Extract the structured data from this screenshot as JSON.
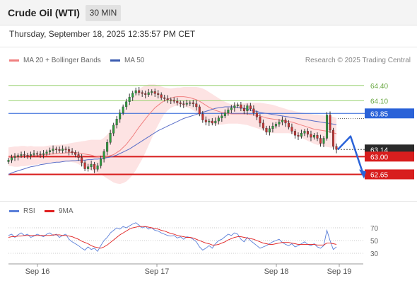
{
  "header": {
    "title": "Crude Oil (WTI)",
    "timeframe": "30 MIN"
  },
  "datetime": "Thursday, September 18, 2025 12:35:57 PM CET",
  "legend_main": {
    "ma20": "MA 20 + Bollinger Bands",
    "ma50": "MA 50"
  },
  "copyright": "Research © 2025 Trading Central",
  "legend_rsi": {
    "rsi": "RSI",
    "ma9": "9MA"
  },
  "colors": {
    "up": "#2e9e3e",
    "down": "#c83232",
    "ma20": "#f08080",
    "ma50": "#5a6ec8",
    "band": "#fde3e3",
    "pivot": "#2a62d8",
    "support": "#d81e1e",
    "resistance": "#9ad272",
    "current": "#2a2a2a",
    "arrow": "#2a62d8"
  },
  "chart_data": [
    {
      "type": "candlestick",
      "ylim": [
        62.35,
        64.62
      ],
      "x_ticks": [
        "Sep 16",
        "Sep 17",
        "Sep 18",
        "Sep 19"
      ],
      "levels": [
        {
          "name": "resistance-2",
          "value": 64.4,
          "label": "64.40",
          "kind": "resistance"
        },
        {
          "name": "resistance-1",
          "value": 64.1,
          "label": "64.10",
          "kind": "resistance"
        },
        {
          "name": "pivot",
          "value": 63.85,
          "label": "63.85",
          "kind": "pivot"
        },
        {
          "name": "current-price",
          "value": 63.14,
          "label": "63.14",
          "kind": "current"
        },
        {
          "name": "support-1",
          "value": 63.0,
          "label": "63.00",
          "kind": "support"
        },
        {
          "name": "support-2",
          "value": 62.65,
          "label": "62.65",
          "kind": "support"
        }
      ],
      "close": [
        62.93,
        62.98,
        63.0,
        63.02,
        63.04,
        63.03,
        63.02,
        63.04,
        63.06,
        63.05,
        63.04,
        63.06,
        63.09,
        63.12,
        63.15,
        63.14,
        63.12,
        63.15,
        63.14,
        63.1,
        63.08,
        63.04,
        62.98,
        62.88,
        62.76,
        62.8,
        62.85,
        62.75,
        62.82,
        62.95,
        63.1,
        63.28,
        63.46,
        63.62,
        63.74,
        63.86,
        63.98,
        64.08,
        64.17,
        64.25,
        64.3,
        64.26,
        64.24,
        64.22,
        64.26,
        64.28,
        64.24,
        64.22,
        64.16,
        64.14,
        64.12,
        64.11,
        64.09,
        64.06,
        64.04,
        64.03,
        64.05,
        64.06,
        64.04,
        63.98,
        63.84,
        63.72,
        63.68,
        63.7,
        63.66,
        63.7,
        63.76,
        63.8,
        63.86,
        63.92,
        63.96,
        64.0,
        64.02,
        63.95,
        63.9,
        64.0,
        63.94,
        63.86,
        63.78,
        63.66,
        63.56,
        63.48,
        63.55,
        63.6,
        63.64,
        63.68,
        63.72,
        63.66,
        63.58,
        63.5,
        63.42,
        63.4,
        63.46,
        63.5,
        63.44,
        63.38,
        63.42,
        63.36,
        63.26,
        63.36,
        63.82,
        63.52,
        63.2,
        63.14
      ],
      "ma20": [
        63.0,
        63.0,
        63.0,
        63.0,
        63.01,
        63.01,
        63.01,
        63.02,
        63.02,
        63.02,
        63.03,
        63.03,
        63.04,
        63.05,
        63.05,
        63.06,
        63.06,
        63.07,
        63.07,
        63.08,
        63.08,
        63.08,
        63.07,
        63.06,
        63.05,
        63.04,
        63.03,
        63.01,
        63.0,
        62.99,
        62.99,
        63.0,
        63.02,
        63.04,
        63.08,
        63.12,
        63.18,
        63.24,
        63.32,
        63.4,
        63.49,
        63.58,
        63.66,
        63.74,
        63.82,
        63.89,
        63.96,
        64.01,
        64.06,
        64.1,
        64.13,
        64.15,
        64.17,
        64.18,
        64.18,
        64.18,
        64.17,
        64.16,
        64.14,
        64.12,
        64.09,
        64.05,
        64.01,
        63.97,
        63.94,
        63.91,
        63.89,
        63.87,
        63.86,
        63.85,
        63.84,
        63.84,
        63.84,
        63.84,
        63.84,
        63.84,
        63.83,
        63.82,
        63.81,
        63.8,
        63.78,
        63.76,
        63.75,
        63.74,
        63.73,
        63.72,
        63.71,
        63.7,
        63.69,
        63.68,
        63.66,
        63.64,
        63.62,
        63.6,
        63.58,
        63.56,
        63.54,
        63.53,
        63.52,
        63.51,
        63.5,
        63.49,
        63.47,
        63.45
      ],
      "ma50": [
        62.65,
        62.68,
        62.7,
        62.72,
        62.74,
        62.76,
        62.78,
        62.8,
        62.81,
        62.82,
        62.84,
        62.85,
        62.86,
        62.87,
        62.88,
        62.89,
        62.89,
        62.9,
        62.91,
        62.91,
        62.92,
        62.92,
        62.93,
        62.93,
        62.93,
        62.94,
        62.94,
        62.95,
        62.95,
        62.96,
        62.97,
        62.98,
        62.99,
        63.01,
        63.03,
        63.06,
        63.09,
        63.12,
        63.15,
        63.19,
        63.23,
        63.27,
        63.31,
        63.35,
        63.39,
        63.43,
        63.47,
        63.51,
        63.54,
        63.57,
        63.6,
        63.63,
        63.66,
        63.69,
        63.72,
        63.75,
        63.77,
        63.79,
        63.81,
        63.83,
        63.85,
        63.87,
        63.89,
        63.91,
        63.93,
        63.95,
        63.96,
        63.97,
        63.98,
        63.98,
        63.98,
        63.98,
        63.97,
        63.96,
        63.95,
        63.93,
        63.92,
        63.9,
        63.89,
        63.87,
        63.86,
        63.85,
        63.84,
        63.83,
        63.82,
        63.81,
        63.8,
        63.79,
        63.78,
        63.77,
        63.76,
        63.75,
        63.74,
        63.73,
        63.72,
        63.71,
        63.7,
        63.69,
        63.68,
        63.67,
        63.66,
        63.65,
        63.64,
        63.63
      ],
      "band_width": [
        0.18,
        0.19,
        0.2,
        0.2,
        0.2,
        0.2,
        0.19,
        0.19,
        0.18,
        0.18,
        0.17,
        0.17,
        0.17,
        0.17,
        0.17,
        0.17,
        0.17,
        0.17,
        0.17,
        0.18,
        0.19,
        0.2,
        0.22,
        0.24,
        0.26,
        0.28,
        0.3,
        0.32,
        0.33,
        0.34,
        0.38,
        0.43,
        0.49,
        0.55,
        0.61,
        0.66,
        0.7,
        0.73,
        0.75,
        0.76,
        0.76,
        0.74,
        0.71,
        0.66,
        0.6,
        0.53,
        0.46,
        0.39,
        0.32,
        0.26,
        0.22,
        0.19,
        0.18,
        0.18,
        0.18,
        0.19,
        0.2,
        0.21,
        0.23,
        0.25,
        0.27,
        0.29,
        0.3,
        0.3,
        0.29,
        0.28,
        0.26,
        0.24,
        0.22,
        0.2,
        0.19,
        0.19,
        0.19,
        0.2,
        0.21,
        0.22,
        0.23,
        0.24,
        0.25,
        0.26,
        0.27,
        0.28,
        0.28,
        0.28,
        0.27,
        0.26,
        0.25,
        0.24,
        0.23,
        0.23,
        0.23,
        0.24,
        0.25,
        0.26,
        0.27,
        0.28,
        0.29,
        0.3,
        0.3,
        0.3,
        0.31,
        0.31,
        0.31,
        0.31
      ],
      "forecast": [
        63.14,
        63.4,
        62.65
      ]
    },
    {
      "type": "line",
      "ylim": [
        20,
        80
      ],
      "y_ticks": [
        70,
        50,
        30
      ],
      "series_names": [
        "RSI",
        "9MA"
      ],
      "rsi": [
        58,
        60,
        55,
        59,
        62,
        58,
        60,
        55,
        57,
        60,
        58,
        56,
        60,
        62,
        58,
        60,
        55,
        58,
        60,
        52,
        48,
        45,
        42,
        38,
        35,
        40,
        36,
        38,
        33,
        42,
        50,
        55,
        62,
        66,
        70,
        68,
        72,
        70,
        73,
        76,
        78,
        74,
        70,
        72,
        68,
        70,
        66,
        65,
        62,
        60,
        58,
        57,
        58,
        54,
        56,
        52,
        56,
        55,
        52,
        48,
        40,
        35,
        38,
        42,
        38,
        45,
        50,
        52,
        56,
        60,
        58,
        62,
        60,
        52,
        48,
        55,
        50,
        46,
        42,
        38,
        40,
        42,
        45,
        48,
        50,
        52,
        47,
        44,
        42,
        45,
        40,
        42,
        45,
        48,
        44,
        42,
        45,
        40,
        38,
        42,
        66,
        50,
        36,
        40
      ],
      "ma9": [
        55,
        56,
        56,
        57,
        57,
        58,
        58,
        58,
        58,
        58,
        58,
        58,
        58,
        58,
        59,
        59,
        59,
        58,
        58,
        57,
        56,
        54,
        52,
        49,
        47,
        45,
        42,
        40,
        39,
        38,
        40,
        43,
        47,
        51,
        55,
        59,
        62,
        65,
        68,
        70,
        71,
        72,
        72,
        72,
        71,
        70,
        69,
        68,
        66,
        65,
        63,
        61,
        60,
        58,
        57,
        56,
        55,
        55,
        54,
        52,
        50,
        48,
        46,
        45,
        43,
        43,
        44,
        46,
        48,
        51,
        53,
        55,
        56,
        56,
        55,
        54,
        53,
        52,
        50,
        48,
        46,
        45,
        44,
        44,
        45,
        46,
        47,
        47,
        47,
        46,
        45,
        44,
        44,
        44,
        44,
        44,
        44,
        43,
        43,
        43,
        46,
        46,
        45,
        44
      ]
    }
  ]
}
